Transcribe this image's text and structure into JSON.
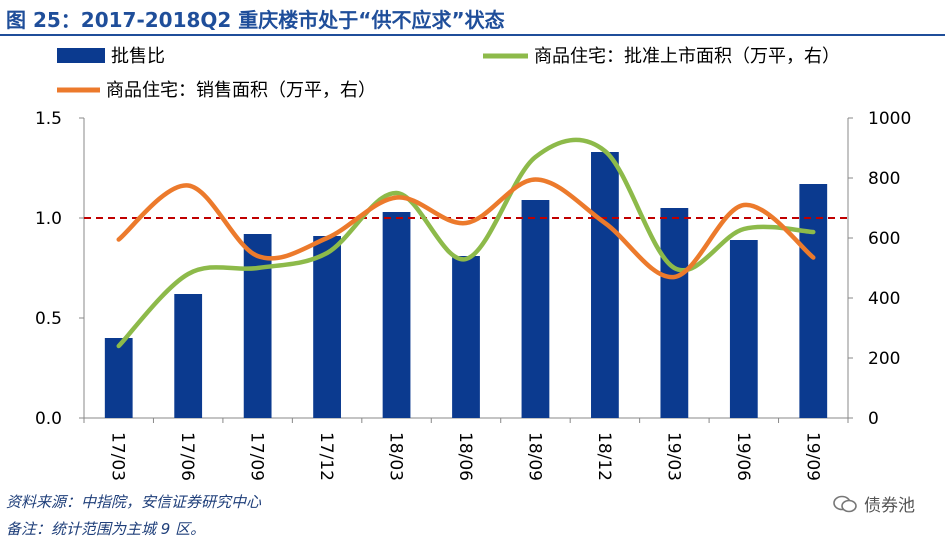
{
  "title": "图 25：2017-2018Q2 重庆楼市处于“供不应求”状态",
  "source": "资料来源：中指院，安信证券研究中心",
  "note": "备注：统计范围为主城 9 区。",
  "watermark": "债券池",
  "colors": {
    "bar": "#0b3a8f",
    "approvals": "#8dba4a",
    "sales": "#ec7a2c",
    "ref_line": "#c00000",
    "title": "#1f4e9a"
  },
  "chart_data": {
    "type": "bar+line",
    "categories": [
      "17/03",
      "17/06",
      "17/09",
      "17/12",
      "18/03",
      "18/06",
      "18/09",
      "18/12",
      "19/03",
      "19/06",
      "19/09"
    ],
    "legend": [
      "批售比",
      "商品住宅：批准上市面积（万平，右）",
      "商品住宅：销售面积（万平，右）"
    ],
    "left_axis": {
      "ylim": [
        0,
        1.5
      ],
      "ticks": [
        "0.0",
        "0.5",
        "1.0",
        "1.5"
      ]
    },
    "right_axis": {
      "ylim": [
        0,
        1000
      ],
      "ticks": [
        "0",
        "200",
        "400",
        "600",
        "800",
        "1000"
      ]
    },
    "reference_line": 1.0,
    "series": [
      {
        "name": "批售比",
        "type": "bar",
        "axis": "left",
        "values": [
          0.4,
          0.62,
          0.92,
          0.91,
          1.03,
          0.81,
          1.09,
          1.33,
          1.05,
          0.89,
          1.17
        ]
      },
      {
        "name": "商品住宅：批准上市面积（万平，右）",
        "type": "line",
        "axis": "right",
        "values": [
          240,
          480,
          500,
          550,
          750,
          530,
          870,
          890,
          500,
          630,
          620
        ]
      },
      {
        "name": "商品住宅：销售面积（万平，右）",
        "type": "line",
        "axis": "right",
        "values": [
          595,
          775,
          540,
          600,
          735,
          650,
          795,
          650,
          470,
          710,
          535
        ]
      }
    ]
  }
}
